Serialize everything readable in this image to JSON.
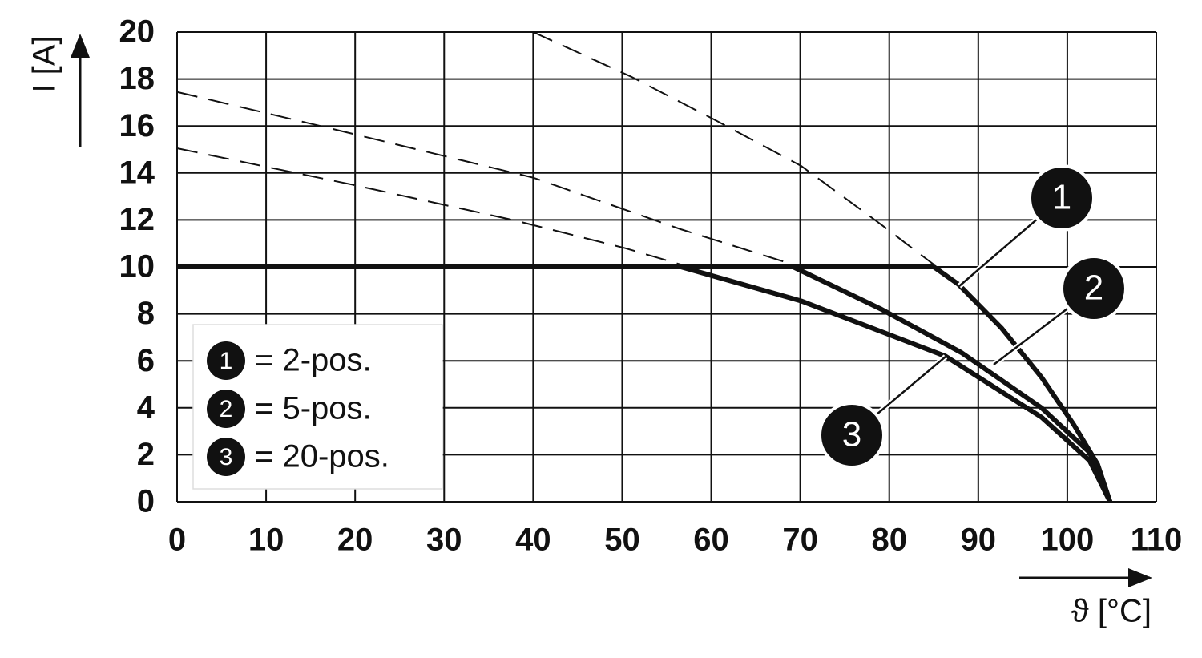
{
  "chart_data": {
    "type": "line",
    "x_label": "ϑ [°C]",
    "y_label": "I [A]",
    "xlim": [
      0,
      110
    ],
    "xticks": [
      0,
      10,
      20,
      30,
      40,
      50,
      60,
      70,
      80,
      90,
      100,
      110
    ],
    "ylim": [
      0,
      20
    ],
    "yticks": [
      0,
      2,
      4,
      6,
      8,
      10,
      12,
      14,
      16,
      18,
      20
    ],
    "grid": true,
    "legend": "lower left",
    "series": [
      {
        "name": "= 2-pos.",
        "label": "1",
        "color": "#111111",
        "x": [
          0,
          85,
          87.8,
          92.6,
          97.1,
          100.7,
          103.4,
          104.8
        ],
        "values": [
          10,
          10,
          9.25,
          7.4,
          5.3,
          3.3,
          1.6,
          0
        ],
        "extension": {
          "x": [
            40,
            51,
            60.2,
            70.1,
            79.1,
            85
          ],
          "values": [
            20,
            18.1,
            16.3,
            14.3,
            11.8,
            10.1
          ]
        }
      },
      {
        "name": "= 5-pos.",
        "label": "2",
        "color": "#111111",
        "x": [
          0,
          69.2,
          79.1,
          88.1,
          97.1,
          102.5,
          104.8
        ],
        "values": [
          10,
          10,
          8.2,
          6.35,
          4.0,
          2.1,
          0
        ],
        "extension": {
          "x": [
            0,
            16.1,
            40,
            56.6,
            69.2
          ],
          "values": [
            17.45,
            16.0,
            13.8,
            11.6,
            10.1
          ]
        }
      },
      {
        "name": "= 20-pos.",
        "label": "3",
        "color": "#111111",
        "x": [
          0,
          56.6,
          70.1,
          86.3,
          97.1,
          102.5,
          104.8
        ],
        "values": [
          10,
          10,
          8.55,
          6.2,
          3.6,
          1.75,
          0
        ],
        "extension": {
          "x": [
            0,
            19.7,
            37.7,
            50.3,
            56.6
          ],
          "values": [
            15.05,
            13.5,
            12.0,
            10.8,
            10.1
          ]
        }
      }
    ]
  }
}
